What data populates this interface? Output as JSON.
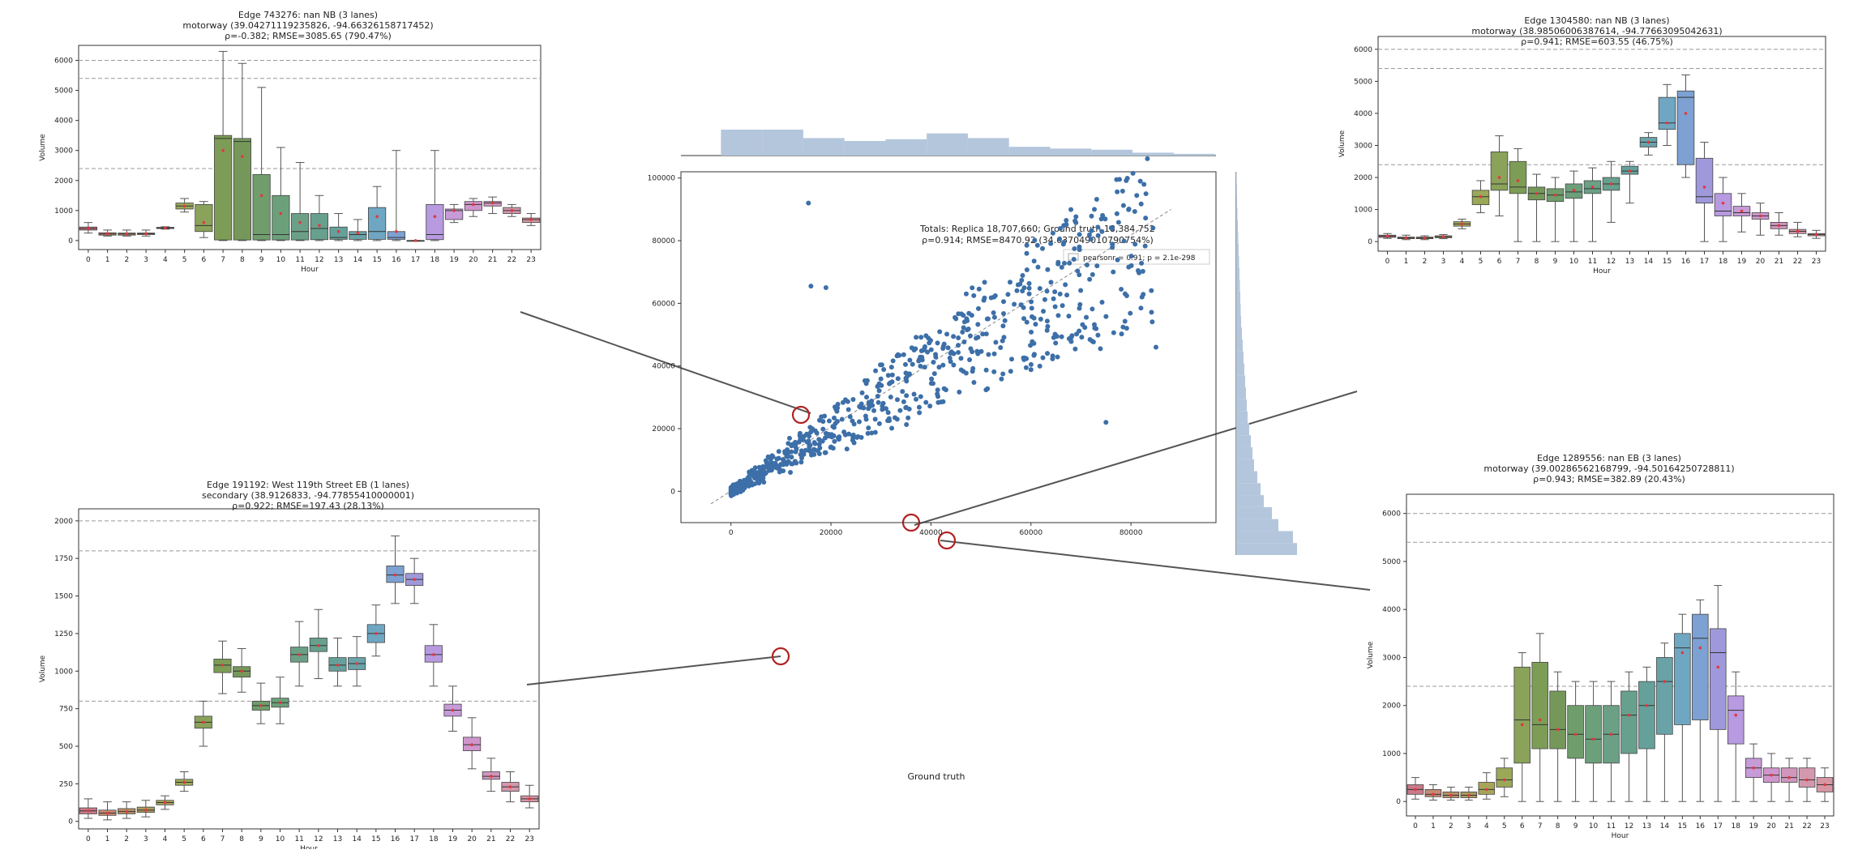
{
  "colors": {
    "scatter_point": "#3d6fa8",
    "hist_fill": "#b3c6dc",
    "ring": "#b22222",
    "connector": "#555555",
    "ref_line": "#aaaaaa",
    "hour_palette": [
      "#c97a8a",
      "#c48a74",
      "#b8916a",
      "#ad9c60",
      "#a7a45a",
      "#9aa858",
      "#8aa25a",
      "#7d9d56",
      "#75985a",
      "#6f9e6c",
      "#6ca07a",
      "#6ba086",
      "#68a08e",
      "#66a09a",
      "#69a3a8",
      "#6fa7c2",
      "#7ca1d2",
      "#9f98da",
      "#b79ae0",
      "#c79ad8",
      "#cf96cd",
      "#d096be",
      "#d398ae",
      "#d696a4"
    ]
  },
  "scatter": {
    "title_line1": "Totals: Replica 18,707,660; Ground truth 18,384,752",
    "title_line2": "ρ=0.914; RMSE=8470.92 (34.637049010790754%)",
    "legend": "pearsonr = 0.91; p = 2.1e-298",
    "xlabel": "Ground truth",
    "ylabel": "",
    "xlim": [
      -10000,
      97000
    ],
    "ylim": [
      -10000,
      102000
    ],
    "xticks": [
      "0",
      "20000",
      "40000",
      "60000",
      "80000"
    ],
    "xtick_values": [
      0,
      20000,
      40000,
      60000,
      80000
    ],
    "yticks": [
      "0",
      "20000",
      "40000",
      "60000",
      "80000",
      "100000"
    ],
    "ytick_values": [
      0,
      20000,
      40000,
      60000,
      80000,
      100000
    ],
    "marginal_top": [
      0.9,
      0.87,
      0.3,
      0.25,
      0.28,
      0.38,
      0.3,
      0.15,
      0.12,
      0.1,
      0.05,
      0.03
    ],
    "marginal_right": [
      0.75,
      0.7,
      0.52,
      0.44,
      0.34,
      0.3,
      0.26,
      0.22,
      0.2,
      0.18,
      0.16,
      0.14,
      0.13,
      0.12,
      0.11,
      0.1,
      0.09,
      0.08,
      0.07,
      0.06,
      0.055,
      0.05,
      0.045,
      0.04,
      0.035,
      0.03,
      0.025,
      0.02,
      0.015,
      0.01,
      0.008,
      0.005
    ]
  },
  "chart_data": [
    {
      "type": "box",
      "title_line1": "Edge 743276: nan NB (3 lanes)",
      "title_line2": "motorway (39.04271119235826, -94.66326158717452)",
      "title_line3": "ρ=-0.382; RMSE=3085.65 (790.47%)",
      "xlabel": "Hour",
      "ylabel": "Volume",
      "ylim": [
        -300,
        6500
      ],
      "yticks": [
        "0",
        "1000",
        "2000",
        "3000",
        "4000",
        "5000",
        "6000"
      ],
      "ytick_values": [
        0,
        1000,
        2000,
        3000,
        4000,
        5000,
        6000
      ],
      "hlines": [
        6000,
        5400,
        2400
      ],
      "categories": [
        "0",
        "1",
        "2",
        "3",
        "4",
        "5",
        "6",
        "7",
        "8",
        "9",
        "10",
        "11",
        "12",
        "13",
        "14",
        "15",
        "16",
        "17",
        "18",
        "19",
        "20",
        "21",
        "22",
        "23"
      ],
      "q1": [
        350,
        180,
        180,
        200,
        400,
        1050,
        300,
        20,
        20,
        20,
        20,
        20,
        30,
        40,
        40,
        40,
        40,
        0,
        30,
        700,
        1000,
        1150,
        900,
        600
      ],
      "median": [
        400,
        220,
        220,
        230,
        420,
        1150,
        500,
        3400,
        3300,
        200,
        200,
        300,
        400,
        100,
        200,
        300,
        100,
        0,
        200,
        1000,
        1200,
        1250,
        1000,
        700
      ],
      "q3": [
        450,
        260,
        250,
        250,
        440,
        1250,
        1200,
        3500,
        3400,
        2200,
        1500,
        900,
        900,
        450,
        300,
        1100,
        300,
        0,
        1200,
        1050,
        1300,
        1300,
        1100,
        750
      ],
      "lower": [
        250,
        150,
        150,
        150,
        380,
        950,
        100,
        0,
        0,
        0,
        0,
        0,
        0,
        0,
        0,
        0,
        0,
        0,
        0,
        600,
        800,
        900,
        800,
        500
      ],
      "upper": [
        600,
        350,
        350,
        350,
        460,
        1400,
        1300,
        6300,
        5900,
        5100,
        3100,
        2600,
        1500,
        900,
        700,
        1800,
        3000,
        0,
        3000,
        1200,
        1400,
        1450,
        1200,
        900
      ],
      "mean": [
        400,
        230,
        220,
        230,
        420,
        1150,
        600,
        3000,
        2800,
        1500,
        900,
        600,
        500,
        300,
        250,
        800,
        300,
        0,
        800,
        1000,
        1200,
        1250,
        1000,
        700
      ]
    },
    {
      "type": "box",
      "title_line1": "Edge 191192: West 119th Street EB (1 lanes)",
      "title_line2": "secondary (38.9126833, -94.77855410000001)",
      "title_line3": "ρ=0.922; RMSE=197.43 (28.13%)",
      "xlabel": "Hour",
      "ylabel": "Volume",
      "ylim": [
        -50,
        2080
      ],
      "yticks": [
        "0",
        "250",
        "500",
        "750",
        "1000",
        "1250",
        "1500",
        "1750",
        "2000"
      ],
      "ytick_values": [
        0,
        250,
        500,
        750,
        1000,
        1250,
        1500,
        1750,
        2000
      ],
      "hlines": [
        2000,
        1800,
        800
      ],
      "categories": [
        "0",
        "1",
        "2",
        "3",
        "4",
        "5",
        "6",
        "7",
        "8",
        "9",
        "10",
        "11",
        "12",
        "13",
        "14",
        "15",
        "16",
        "17",
        "18",
        "19",
        "20",
        "21",
        "22",
        "23"
      ],
      "q1": [
        50,
        40,
        50,
        60,
        110,
        240,
        620,
        990,
        960,
        740,
        760,
        1060,
        1130,
        1000,
        1010,
        1190,
        1590,
        1570,
        1060,
        700,
        470,
        280,
        200,
        130
      ],
      "median": [
        70,
        55,
        65,
        75,
        125,
        260,
        660,
        1040,
        1000,
        770,
        790,
        1110,
        1170,
        1040,
        1050,
        1250,
        1640,
        1610,
        1110,
        740,
        510,
        300,
        230,
        150
      ],
      "q3": [
        90,
        75,
        85,
        95,
        140,
        280,
        700,
        1080,
        1030,
        800,
        820,
        1160,
        1220,
        1090,
        1090,
        1310,
        1700,
        1650,
        1170,
        780,
        560,
        330,
        260,
        170
      ],
      "lower": [
        20,
        10,
        20,
        30,
        80,
        200,
        500,
        850,
        860,
        650,
        650,
        900,
        950,
        900,
        900,
        1100,
        1450,
        1450,
        900,
        600,
        350,
        200,
        130,
        90
      ],
      "upper": [
        150,
        130,
        130,
        140,
        170,
        330,
        800,
        1200,
        1150,
        920,
        960,
        1330,
        1410,
        1220,
        1230,
        1440,
        1900,
        1750,
        1310,
        900,
        690,
        420,
        330,
        240
      ],
      "mean": [
        70,
        55,
        65,
        75,
        125,
        260,
        660,
        1040,
        1000,
        770,
        790,
        1110,
        1170,
        1040,
        1050,
        1250,
        1640,
        1610,
        1110,
        740,
        510,
        300,
        230,
        150
      ]
    },
    {
      "type": "box",
      "title_line1": "Edge 1304580: nan NB (3 lanes)",
      "title_line2": "motorway (38.98506006387614, -94.77663095042631)",
      "title_line3": "ρ=0.941; RMSE=603.55 (46.75%)",
      "xlabel": "Hour",
      "ylabel": "Volume",
      "ylim": [
        -300,
        6400
      ],
      "yticks": [
        "0",
        "1000",
        "2000",
        "3000",
        "4000",
        "5000",
        "6000"
      ],
      "ytick_values": [
        0,
        1000,
        2000,
        3000,
        4000,
        5000,
        6000
      ],
      "hlines": [
        6000,
        5400,
        2400
      ],
      "categories": [
        "0",
        "1",
        "2",
        "3",
        "4",
        "5",
        "6",
        "7",
        "8",
        "9",
        "10",
        "11",
        "12",
        "13",
        "14",
        "15",
        "16",
        "17",
        "18",
        "19",
        "20",
        "21",
        "22",
        "23"
      ],
      "q1": [
        130,
        90,
        90,
        120,
        480,
        1150,
        1600,
        1500,
        1300,
        1250,
        1350,
        1500,
        1600,
        2100,
        2950,
        3500,
        2400,
        1200,
        800,
        800,
        700,
        400,
        250,
        180
      ],
      "median": [
        170,
        110,
        110,
        150,
        550,
        1400,
        1800,
        1700,
        1500,
        1450,
        1550,
        1650,
        1800,
        2200,
        3100,
        3700,
        4500,
        1400,
        950,
        900,
        800,
        500,
        320,
        220
      ],
      "q3": [
        200,
        140,
        140,
        180,
        620,
        1600,
        2800,
        2500,
        1700,
        1650,
        1800,
        1900,
        2000,
        2350,
        3250,
        4500,
        4700,
        2600,
        1500,
        1100,
        900,
        600,
        380,
        250
      ],
      "lower": [
        100,
        60,
        60,
        90,
        400,
        900,
        800,
        0,
        0,
        0,
        0,
        0,
        600,
        1200,
        2700,
        3000,
        2000,
        0,
        0,
        300,
        200,
        200,
        150,
        100
      ],
      "upper": [
        250,
        200,
        180,
        220,
        700,
        1900,
        3300,
        2900,
        2100,
        2000,
        2200,
        2300,
        2500,
        2500,
        3400,
        4900,
        5200,
        3100,
        2000,
        1500,
        1200,
        900,
        600,
        350
      ],
      "mean": [
        170,
        110,
        110,
        150,
        550,
        1400,
        2000,
        1900,
        1500,
        1450,
        1600,
        1700,
        1800,
        2200,
        3100,
        3700,
        4000,
        1700,
        1200,
        950,
        800,
        500,
        320,
        220
      ]
    },
    {
      "type": "box",
      "title_line1": "Edge 1289556: nan EB (3 lanes)",
      "title_line2": "motorway (39.00286562168799, -94.50164250728811)",
      "title_line3": "ρ=0.943; RMSE=382.89 (20.43%)",
      "xlabel": "Hour",
      "ylabel": "Volume",
      "ylim": [
        -300,
        6400
      ],
      "yticks": [
        "0",
        "1000",
        "2000",
        "3000",
        "4000",
        "5000",
        "6000"
      ],
      "ytick_values": [
        0,
        1000,
        2000,
        3000,
        4000,
        5000,
        6000
      ],
      "hlines": [
        6000,
        5400,
        2400
      ],
      "categories": [
        "0",
        "1",
        "2",
        "3",
        "4",
        "5",
        "6",
        "7",
        "8",
        "9",
        "10",
        "11",
        "12",
        "13",
        "14",
        "15",
        "16",
        "17",
        "18",
        "19",
        "20",
        "21",
        "22",
        "23"
      ],
      "q1": [
        150,
        100,
        80,
        80,
        150,
        300,
        800,
        1100,
        1100,
        900,
        800,
        800,
        1000,
        1100,
        1400,
        1600,
        1700,
        1500,
        1200,
        500,
        400,
        400,
        300,
        200
      ],
      "median": [
        250,
        150,
        130,
        130,
        250,
        450,
        1700,
        1600,
        1500,
        1400,
        1300,
        1400,
        1800,
        2000,
        2500,
        3200,
        3400,
        3100,
        1900,
        700,
        550,
        500,
        450,
        350
      ],
      "q3": [
        350,
        250,
        200,
        200,
        400,
        700,
        2800,
        2900,
        2300,
        2000,
        2000,
        2000,
        2300,
        2500,
        3000,
        3500,
        3900,
        3600,
        2200,
        900,
        700,
        700,
        700,
        500
      ],
      "lower": [
        50,
        30,
        30,
        30,
        50,
        100,
        0,
        0,
        0,
        0,
        0,
        0,
        0,
        0,
        0,
        0,
        0,
        0,
        0,
        0,
        0,
        0,
        0,
        0
      ],
      "upper": [
        500,
        350,
        300,
        300,
        600,
        900,
        3100,
        3500,
        2700,
        2500,
        2500,
        2500,
        2700,
        2800,
        3300,
        3900,
        4200,
        4500,
        2700,
        1200,
        1000,
        900,
        900,
        700
      ],
      "mean": [
        250,
        150,
        130,
        130,
        250,
        450,
        1600,
        1700,
        1500,
        1400,
        1300,
        1400,
        1800,
        2000,
        2500,
        3100,
        3200,
        2800,
        1800,
        700,
        550,
        500,
        450,
        350
      ]
    }
  ]
}
